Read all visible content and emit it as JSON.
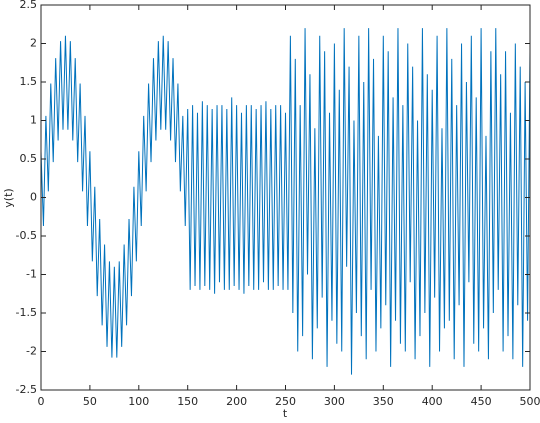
{
  "chart_data": {
    "type": "line",
    "xlabel": "t",
    "ylabel": "y(t)",
    "color": "#0072bd",
    "xlim": [
      0,
      500
    ],
    "xticks": [
      0,
      50,
      100,
      150,
      200,
      250,
      300,
      350,
      400,
      450,
      500
    ],
    "ylim": [
      -2.5,
      2.5
    ],
    "yticks": [
      -2.5,
      -2,
      -1.5,
      -1,
      -0.5,
      0,
      0.5,
      1,
      1.5,
      2,
      2.5
    ],
    "x": [
      0,
      2.5,
      5,
      7.5,
      10,
      12.5,
      15,
      17.5,
      20,
      22.5,
      25,
      27.5,
      30,
      32.5,
      35,
      37.5,
      40,
      42.5,
      45,
      47.5,
      50,
      52.5,
      55,
      57.5,
      60,
      62.5,
      65,
      67.5,
      70,
      72.5,
      75,
      77.5,
      80,
      82.5,
      85,
      87.5,
      90,
      92.5,
      95,
      97.5,
      100,
      102.5,
      105,
      107.5,
      110,
      112.5,
      115,
      117.5,
      120,
      122.5,
      125,
      127.5,
      130,
      132.5,
      135,
      137.5,
      140,
      142.5,
      145,
      147.5,
      150,
      152.5,
      155,
      157.5,
      160,
      162.5,
      165,
      167.5,
      170,
      172.5,
      175,
      177.5,
      180,
      182.5,
      185,
      187.5,
      190,
      192.5,
      195,
      197.5,
      200,
      202.5,
      205,
      207.5,
      210,
      212.5,
      215,
      217.5,
      220,
      222.5,
      225,
      227.5,
      230,
      232.5,
      235,
      237.5,
      240,
      242.5,
      245,
      247.5,
      250,
      252.5,
      255,
      257.5,
      260,
      262.5,
      265,
      267.5,
      270,
      272.5,
      275,
      277.5,
      280,
      282.5,
      285,
      287.5,
      290,
      292.5,
      295,
      297.5,
      300,
      302.5,
      305,
      307.5,
      310,
      312.5,
      315,
      317.5,
      320,
      322.5,
      325,
      327.5,
      330,
      332.5,
      335,
      337.5,
      340,
      342.5,
      345,
      347.5,
      350,
      352.5,
      355,
      357.5,
      360,
      362.5,
      365,
      367.5,
      370,
      372.5,
      375,
      377.5,
      380,
      382.5,
      385,
      387.5,
      390,
      392.5,
      395,
      397.5,
      400,
      402.5,
      405,
      407.5,
      410,
      412.5,
      415,
      417.5,
      420,
      422.5,
      425,
      427.5,
      430,
      432.5,
      435,
      437.5,
      440,
      442.5,
      445,
      447.5,
      450,
      452.5,
      455,
      457.5,
      460,
      462.5,
      465,
      467.5,
      470,
      472.5,
      475,
      477.5,
      480,
      482.5,
      485,
      487.5,
      490,
      492.5,
      495,
      497.5,
      500
    ],
    "values": [
      0.6,
      -0.37,
      1.06,
      0.08,
      1.48,
      0.46,
      1.81,
      0.74,
      2.03,
      0.88,
      2.1,
      0.88,
      2.03,
      0.74,
      1.81,
      0.46,
      1.48,
      0.08,
      1.06,
      -0.37,
      0.6,
      -0.83,
      0.14,
      -1.28,
      -0.28,
      -1.66,
      -0.61,
      -1.94,
      -0.83,
      -2.08,
      -0.9,
      -2.08,
      -0.83,
      -1.94,
      -0.61,
      -1.66,
      -0.28,
      -1.28,
      0.14,
      -0.83,
      0.6,
      -0.37,
      1.06,
      0.08,
      1.48,
      0.46,
      1.81,
      0.74,
      2.03,
      0.88,
      2.1,
      0.88,
      2.03,
      0.74,
      1.81,
      0.46,
      1.48,
      0.08,
      1.06,
      -0.37,
      1.15,
      -1.2,
      1.2,
      -1.15,
      1.1,
      -1.2,
      1.25,
      -1.15,
      1.2,
      -1.2,
      1.15,
      -1.25,
      1.2,
      -1.1,
      1.2,
      -1.2,
      1.15,
      -1.2,
      1.3,
      -1.15,
      1.2,
      -1.2,
      1.1,
      -1.25,
      1.2,
      -1.15,
      1.2,
      -1.2,
      1.15,
      -1.2,
      1.2,
      -1.1,
      1.25,
      -1.2,
      1.15,
      -1.2,
      1.2,
      -1.15,
      1.2,
      -1.2,
      1.1,
      -1.2,
      2.1,
      -1.5,
      1.8,
      -2.0,
      1.2,
      -1.8,
      2.2,
      -1.0,
      1.6,
      -2.1,
      0.9,
      -1.7,
      2.1,
      -1.3,
      1.9,
      -2.2,
      1.1,
      -1.6,
      2.0,
      -1.9,
      1.4,
      -2.0,
      2.2,
      -0.9,
      1.7,
      -2.3,
      1.0,
      -1.5,
      2.1,
      -1.8,
      1.5,
      -2.1,
      2.2,
      -1.2,
      1.8,
      -2.0,
      0.8,
      -1.7,
      2.1,
      -1.4,
      1.9,
      -2.2,
      1.3,
      -1.6,
      2.2,
      -1.9,
      1.2,
      -2.0,
      2.0,
      -1.1,
      1.7,
      -2.1,
      1.0,
      -1.8,
      2.2,
      -1.5,
      1.6,
      -2.2,
      1.4,
      -1.3,
      2.1,
      -2.0,
      0.9,
      -1.7,
      2.2,
      -1.6,
      1.8,
      -2.1,
      1.2,
      -1.4,
      2.0,
      -2.2,
      1.5,
      -1.1,
      2.1,
      -1.9,
      1.3,
      -2.0,
      2.2,
      -1.7,
      0.8,
      -2.1,
      1.9,
      -1.5,
      2.2,
      -1.2,
      1.6,
      -2.0,
      1.9,
      -1.8,
      1.1,
      -2.1,
      2.0,
      -1.4,
      1.7,
      -2.2,
      1.5,
      -1.6,
      1.9
    ]
  }
}
